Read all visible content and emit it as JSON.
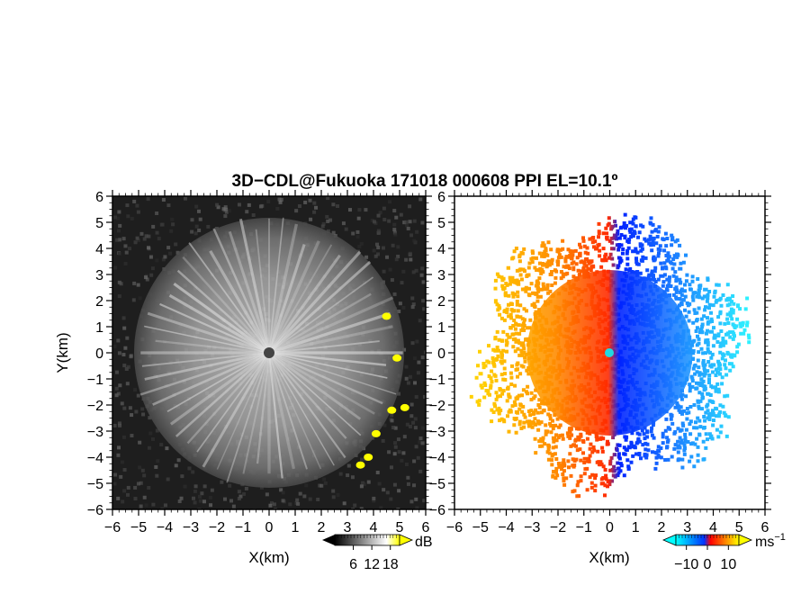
{
  "title": "3D−CDL@Fukuoka 171018 000608 PPI EL=10.1º",
  "chart_data": [
    {
      "type": "heatmap",
      "panel": "reflectivity",
      "xlabel": "X(km)",
      "ylabel": "Y(km)",
      "xlim": [
        -6,
        6
      ],
      "ylim": [
        -6,
        6
      ],
      "xticks": [
        "−6",
        "−5",
        "−4",
        "−3",
        "−2",
        "−1",
        "0",
        "1",
        "2",
        "3",
        "4",
        "5",
        "6"
      ],
      "yticks": [
        "−6",
        "−5",
        "−4",
        "−3",
        "−2",
        "−1",
        "0",
        "1",
        "2",
        "3",
        "4",
        "5",
        "6"
      ],
      "echo_radius_km": 5,
      "colorbar": {
        "unit": "dB",
        "range": [
          0,
          21
        ],
        "tick_labels": [
          "6",
          "12",
          "18"
        ],
        "tick_values": [
          6,
          12,
          18
        ],
        "colors": [
          "#000000",
          "#ffffff",
          "#ffff00"
        ]
      },
      "strong_echoes_xy_km": [
        [
          4.5,
          1.4
        ],
        [
          4.9,
          -0.2
        ],
        [
          4.7,
          -2.2
        ],
        [
          5.2,
          -2.1
        ],
        [
          4.1,
          -3.1
        ],
        [
          3.5,
          -4.3
        ],
        [
          3.8,
          -4.0
        ]
      ]
    },
    {
      "type": "heatmap",
      "panel": "doppler_velocity",
      "xlabel": "X(km)",
      "ylabel": "",
      "xlim": [
        -6,
        6
      ],
      "ylim": [
        -6,
        6
      ],
      "xticks": [
        "−6",
        "−5",
        "−4",
        "−3",
        "−2",
        "−1",
        "0",
        "1",
        "2",
        "3",
        "4",
        "5",
        "6"
      ],
      "yticks": [
        "−6",
        "−5",
        "−4",
        "−3",
        "−2",
        "−1",
        "0",
        "1",
        "2",
        "3",
        "4",
        "5",
        "6"
      ],
      "echo_radius_km": 5,
      "colorbar": {
        "unit": "ms",
        "unit_exponent": "−1",
        "range": [
          -15,
          15
        ],
        "tick_labels": [
          "−10",
          "0",
          "10"
        ],
        "tick_values": [
          -10,
          0,
          10
        ],
        "colors": [
          "#00ffff",
          "#0033ff",
          "#ff0000",
          "#ffff00"
        ]
      }
    }
  ]
}
